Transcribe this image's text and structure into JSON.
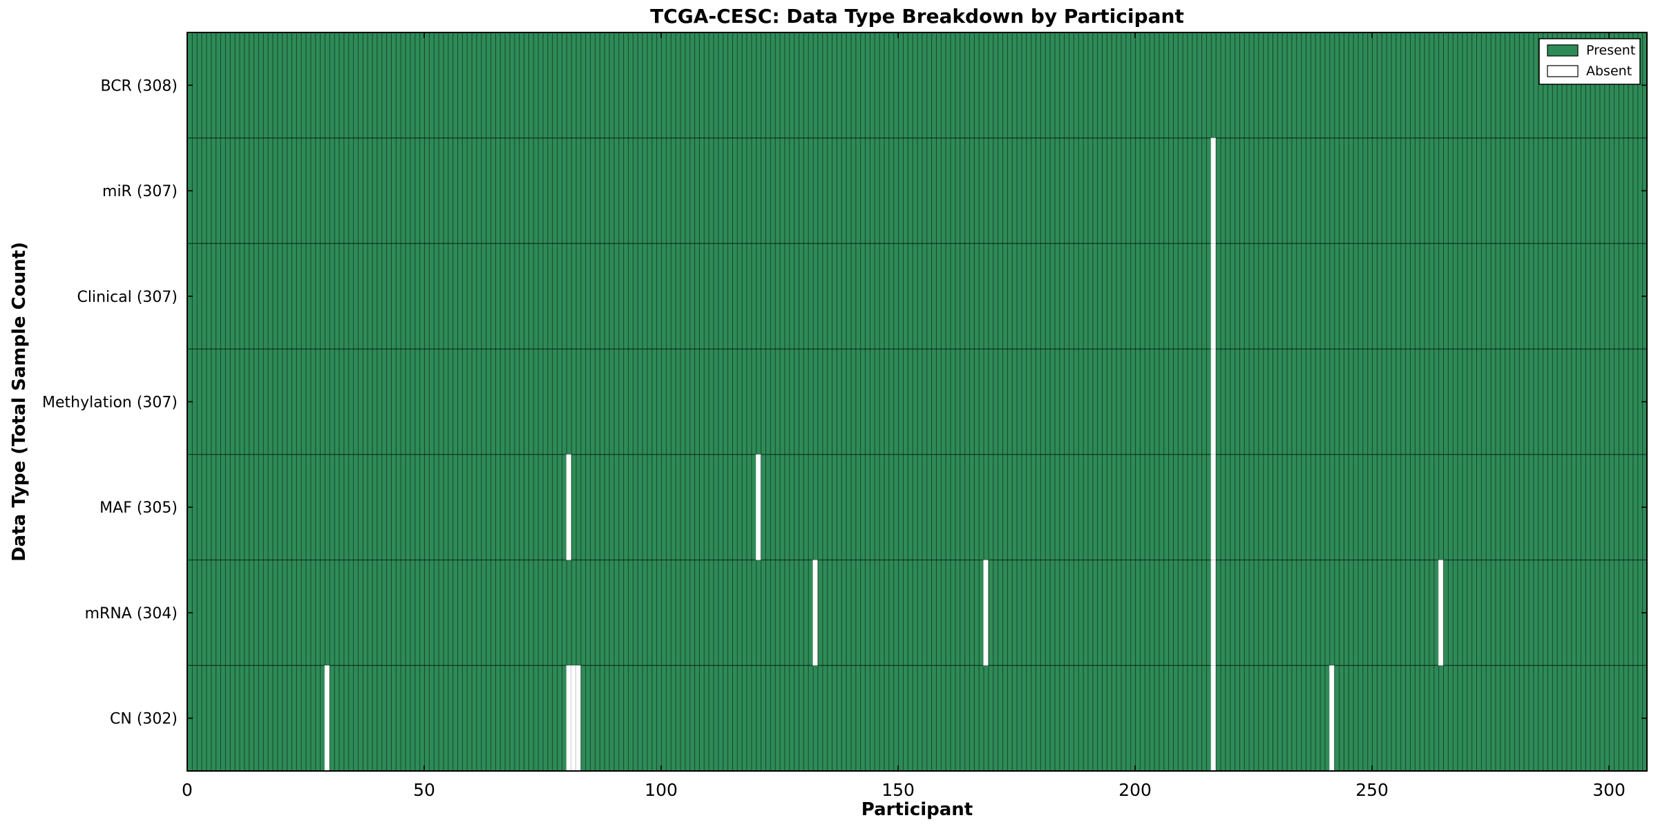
{
  "chart_data": {
    "type": "heatmap",
    "title": "TCGA-CESC: Data Type Breakdown by Participant",
    "xlabel": "Participant",
    "ylabel": "Data Type (Total Sample Count)",
    "x_ticks": [
      0,
      50,
      100,
      150,
      200,
      250,
      300
    ],
    "xlim": [
      0,
      308
    ],
    "n_participants": 308,
    "grid": false,
    "legend_position": "upper right",
    "legend": [
      {
        "label": "Present",
        "color": "#2e8b57"
      },
      {
        "label": "Absent",
        "color": "#ffffff"
      }
    ],
    "rows": [
      {
        "name": "BCR",
        "label": "BCR (308)",
        "total": 308,
        "absent": []
      },
      {
        "name": "miR",
        "label": "miR (307)",
        "total": 307,
        "absent": [
          216
        ]
      },
      {
        "name": "Clinical",
        "label": "Clinical (307)",
        "total": 307,
        "absent": [
          216
        ]
      },
      {
        "name": "Methylation",
        "label": "Methylation (307)",
        "total": 307,
        "absent": [
          216
        ]
      },
      {
        "name": "MAF",
        "label": "MAF (305)",
        "total": 305,
        "absent": [
          80,
          120,
          216
        ]
      },
      {
        "name": "mRNA",
        "label": "mRNA (304)",
        "total": 304,
        "absent": [
          132,
          168,
          216,
          264
        ]
      },
      {
        "name": "CN",
        "label": "CN (302)",
        "total": 302,
        "absent": [
          29,
          80,
          81,
          82,
          216,
          241
        ]
      }
    ],
    "colors": {
      "present": "#2e8b57",
      "absent": "#ffffff",
      "bar_edge": "rgba(0,0,0,0.5)",
      "row_divider": "rgba(0,0,0,0.55)",
      "absent_edge": "#b5b5b5",
      "spine": "#000000",
      "background": "#ffffff"
    }
  }
}
